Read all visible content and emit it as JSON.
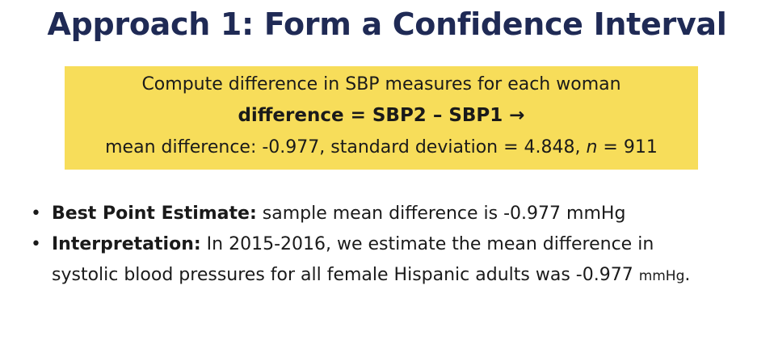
{
  "slide": {
    "title": "Approach 1: Form a Confidence Interval",
    "highlight": {
      "line1": "Compute difference in SBP measures for each woman",
      "line2": "difference = SBP2 – SBP1 →",
      "line3_before_n": "mean difference: -0.977, standard deviation = 4.848, ",
      "line3_n": "n",
      "line3_after_n": " = 911",
      "background_color": "#f7dd5a"
    },
    "bullets": [
      {
        "label": "Best Point Estimate:",
        "text": " sample mean difference is -0.977 mmHg"
      },
      {
        "label": "Interpretation:",
        "text_line1": " In 2015-2016, we estimate the mean difference in",
        "text_line2": "systolic blood pressures for all female Hispanic adults was -0.977 ",
        "unit": "mmHg",
        "end": "."
      }
    ],
    "title_color": "#1f2a55"
  }
}
